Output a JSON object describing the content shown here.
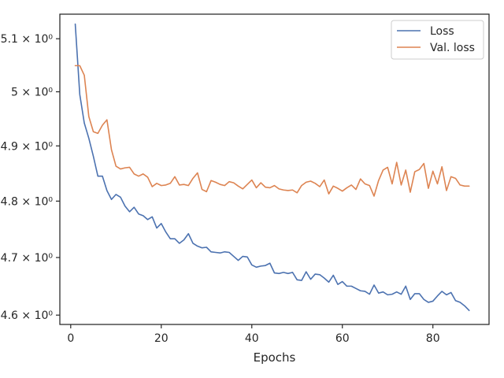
{
  "chart_data": {
    "type": "line",
    "xlabel": "Epochs",
    "ylabel": "",
    "yscale": "log",
    "xlim": [
      -2.4,
      92.4
    ],
    "ylim": [
      4.584,
      5.147
    ],
    "grid": false,
    "legend_position": "top-right",
    "x_ticks": [
      {
        "value": 0,
        "label": "0"
      },
      {
        "value": 20,
        "label": "20"
      },
      {
        "value": 40,
        "label": "40"
      },
      {
        "value": 60,
        "label": "60"
      },
      {
        "value": 80,
        "label": "80"
      }
    ],
    "y_ticks": [
      {
        "value": 4.6,
        "label": "4.6 × 10⁰"
      },
      {
        "value": 4.7,
        "label": "4.7 × 10⁰"
      },
      {
        "value": 4.8,
        "label": "4.8 × 10⁰"
      },
      {
        "value": 4.9,
        "label": "4.9 × 10⁰"
      },
      {
        "value": 5.0,
        "label": "5 × 10⁰"
      },
      {
        "value": 5.1,
        "label": "5.1 × 10⁰"
      }
    ],
    "x": [
      1,
      2,
      3,
      4,
      5,
      6,
      7,
      8,
      9,
      10,
      11,
      12,
      13,
      14,
      15,
      16,
      17,
      18,
      19,
      20,
      21,
      22,
      23,
      24,
      25,
      26,
      27,
      28,
      29,
      30,
      31,
      32,
      33,
      34,
      35,
      36,
      37,
      38,
      39,
      40,
      41,
      42,
      43,
      44,
      45,
      46,
      47,
      48,
      49,
      50,
      51,
      52,
      53,
      54,
      55,
      56,
      57,
      58,
      59,
      60,
      61,
      62,
      63,
      64,
      65,
      66,
      67,
      68,
      69,
      70,
      71,
      72,
      73,
      74,
      75,
      76,
      77,
      78,
      79,
      80,
      81,
      82,
      83,
      84,
      85,
      86,
      87,
      88
    ],
    "series": [
      {
        "name": "Loss",
        "color": "#4c72b0",
        "values": [
          5.128,
          4.995,
          4.942,
          4.914,
          4.881,
          4.845,
          4.845,
          4.819,
          4.803,
          4.812,
          4.807,
          4.791,
          4.781,
          4.789,
          4.777,
          4.774,
          4.767,
          4.772,
          4.752,
          4.76,
          4.745,
          4.733,
          4.733,
          4.725,
          4.731,
          4.742,
          4.725,
          4.72,
          4.717,
          4.718,
          4.71,
          4.709,
          4.708,
          4.71,
          4.709,
          4.702,
          4.695,
          4.702,
          4.701,
          4.687,
          4.683,
          4.685,
          4.686,
          4.69,
          4.673,
          4.672,
          4.674,
          4.672,
          4.674,
          4.661,
          4.66,
          4.675,
          4.662,
          4.671,
          4.67,
          4.664,
          4.657,
          4.669,
          4.653,
          4.658,
          4.65,
          4.65,
          4.646,
          4.642,
          4.641,
          4.636,
          4.652,
          4.638,
          4.64,
          4.635,
          4.636,
          4.64,
          4.636,
          4.65,
          4.627,
          4.637,
          4.637,
          4.627,
          4.622,
          4.624,
          4.633,
          4.641,
          4.635,
          4.639,
          4.625,
          4.622,
          4.616,
          4.608
        ]
      },
      {
        "name": "Val. loss",
        "color": "#dd8452",
        "values": [
          5.049,
          5.049,
          5.031,
          4.954,
          4.926,
          4.923,
          4.938,
          4.948,
          4.893,
          4.863,
          4.858,
          4.86,
          4.861,
          4.849,
          4.845,
          4.849,
          4.843,
          4.826,
          4.832,
          4.828,
          4.829,
          4.832,
          4.844,
          4.829,
          4.83,
          4.828,
          4.841,
          4.851,
          4.821,
          4.817,
          4.837,
          4.834,
          4.83,
          4.828,
          4.835,
          4.833,
          4.827,
          4.822,
          4.83,
          4.838,
          4.824,
          4.833,
          4.825,
          4.824,
          4.828,
          4.822,
          4.82,
          4.819,
          4.82,
          4.815,
          4.828,
          4.834,
          4.836,
          4.832,
          4.826,
          4.838,
          4.813,
          4.827,
          4.823,
          4.818,
          4.824,
          4.829,
          4.821,
          4.84,
          4.831,
          4.828,
          4.809,
          4.837,
          4.856,
          4.861,
          4.831,
          4.87,
          4.829,
          4.856,
          4.816,
          4.853,
          4.857,
          4.868,
          4.823,
          4.854,
          4.831,
          4.862,
          4.819,
          4.844,
          4.841,
          4.829,
          4.827,
          4.827
        ]
      }
    ]
  }
}
